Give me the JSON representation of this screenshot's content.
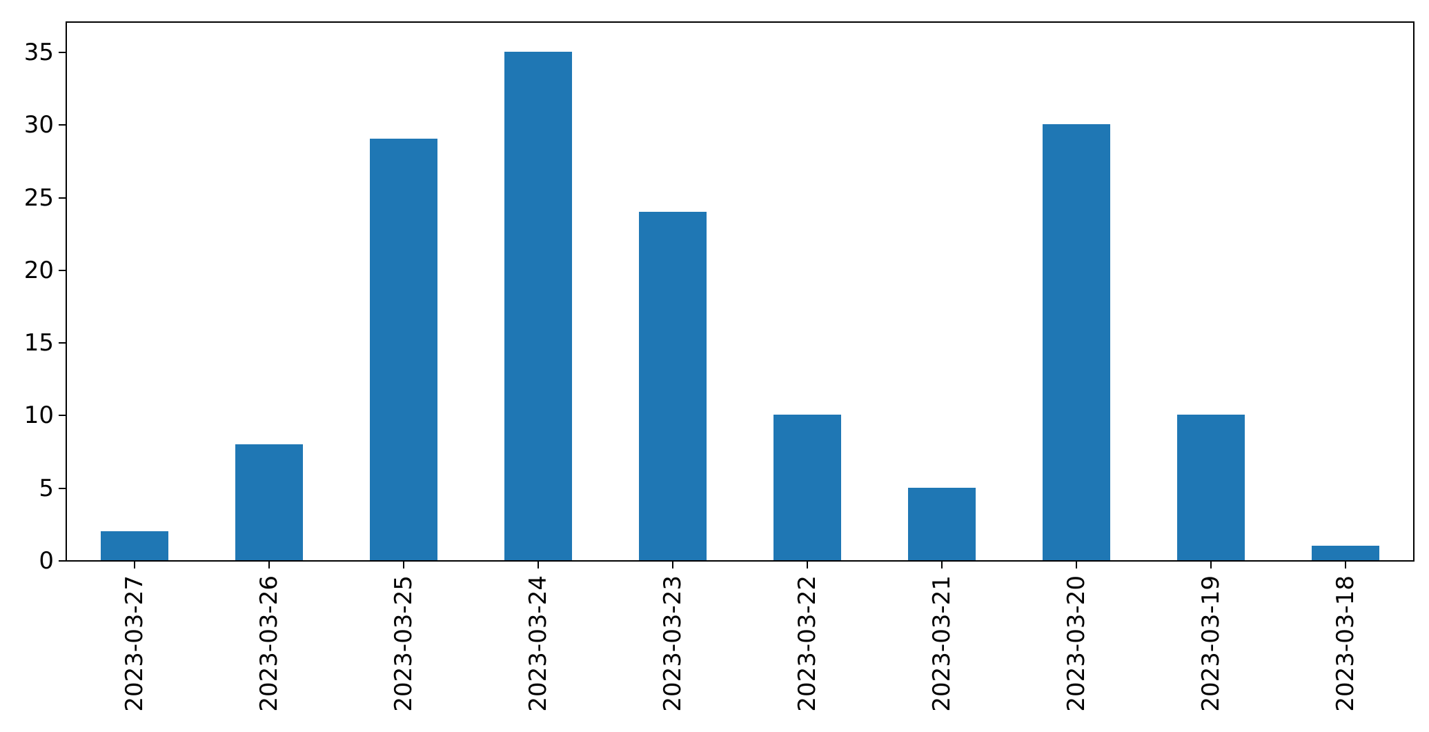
{
  "chart_data": {
    "type": "bar",
    "title": "",
    "xlabel": "",
    "ylabel": "",
    "categories": [
      "2023-03-27",
      "2023-03-26",
      "2023-03-25",
      "2023-03-24",
      "2023-03-23",
      "2023-03-22",
      "2023-03-21",
      "2023-03-20",
      "2023-03-19",
      "2023-03-18"
    ],
    "values": [
      2,
      8,
      29,
      35,
      24,
      10,
      5,
      30,
      10,
      1
    ],
    "yticks": [
      0,
      5,
      10,
      15,
      20,
      25,
      30,
      35
    ],
    "ylim": [
      0,
      37
    ],
    "bar_color": "#1f77b4",
    "axis_color": "#000000",
    "background_color": "#ffffff",
    "grid": false,
    "legend_position": "none",
    "x_tick_rotation_deg": 90,
    "bar_width_fraction": 0.5
  }
}
